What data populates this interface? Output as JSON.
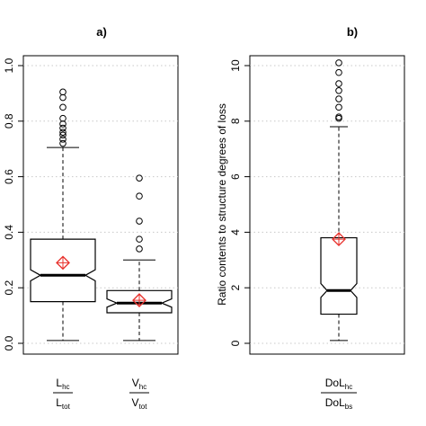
{
  "chart_data": [
    {
      "type": "boxplot",
      "title": "a)",
      "ylabel": "",
      "ylim": [
        0,
        1
      ],
      "yticks": [
        "0.0",
        "0.2",
        "0.4",
        "0.6",
        "0.8",
        "1.0"
      ],
      "grid": "dotted horizontal",
      "notched": true,
      "mean_marker": "red diamond with cross",
      "colors": {
        "box": "#000000",
        "mean": "#e8302b",
        "grid": "#c8c8c8"
      },
      "boxes": [
        {
          "label_num_main": "L",
          "label_num_sub": "hc",
          "label_den_main": "L",
          "label_den_sub": "tot",
          "whisker_low": 0.01,
          "q1": 0.15,
          "median": 0.245,
          "q3": 0.375,
          "whisker_high": 0.705,
          "notch_low": 0.225,
          "notch_high": 0.265,
          "mean": 0.29,
          "outliers": [
            0.72,
            0.735,
            0.75,
            0.76,
            0.775,
            0.79,
            0.81,
            0.85,
            0.885,
            0.905
          ]
        },
        {
          "label_num_main": "V",
          "label_num_sub": "hc",
          "label_den_main": "V",
          "label_den_sub": "tot",
          "whisker_low": 0.01,
          "q1": 0.11,
          "median": 0.145,
          "q3": 0.19,
          "whisker_high": 0.3,
          "notch_low": 0.13,
          "notch_high": 0.16,
          "mean": 0.155,
          "outliers": [
            0.34,
            0.375,
            0.44,
            0.53,
            0.595
          ]
        }
      ]
    },
    {
      "type": "boxplot",
      "title": "b)",
      "ylabel": "Ratio contents to structure degrees of loss",
      "ylim": [
        0,
        10
      ],
      "yticks": [
        "0",
        "2",
        "4",
        "6",
        "8",
        "10"
      ],
      "grid": "dotted horizontal",
      "notched": true,
      "mean_marker": "red diamond with cross",
      "colors": {
        "box": "#000000",
        "mean": "#e8302b",
        "grid": "#c8c8c8"
      },
      "boxes": [
        {
          "label_num_main": "DoL",
          "label_num_sub": "hc",
          "label_den_main": "DoL",
          "label_den_sub": "bs",
          "whisker_low": 0.1,
          "q1": 1.05,
          "median": 1.9,
          "q3": 3.8,
          "whisker_high": 7.8,
          "notch_low": 1.65,
          "notch_high": 2.15,
          "mean": 3.75,
          "outliers": [
            8.1,
            8.15,
            8.5,
            8.8,
            9.1,
            9.35,
            9.75,
            10.1
          ]
        }
      ]
    }
  ]
}
